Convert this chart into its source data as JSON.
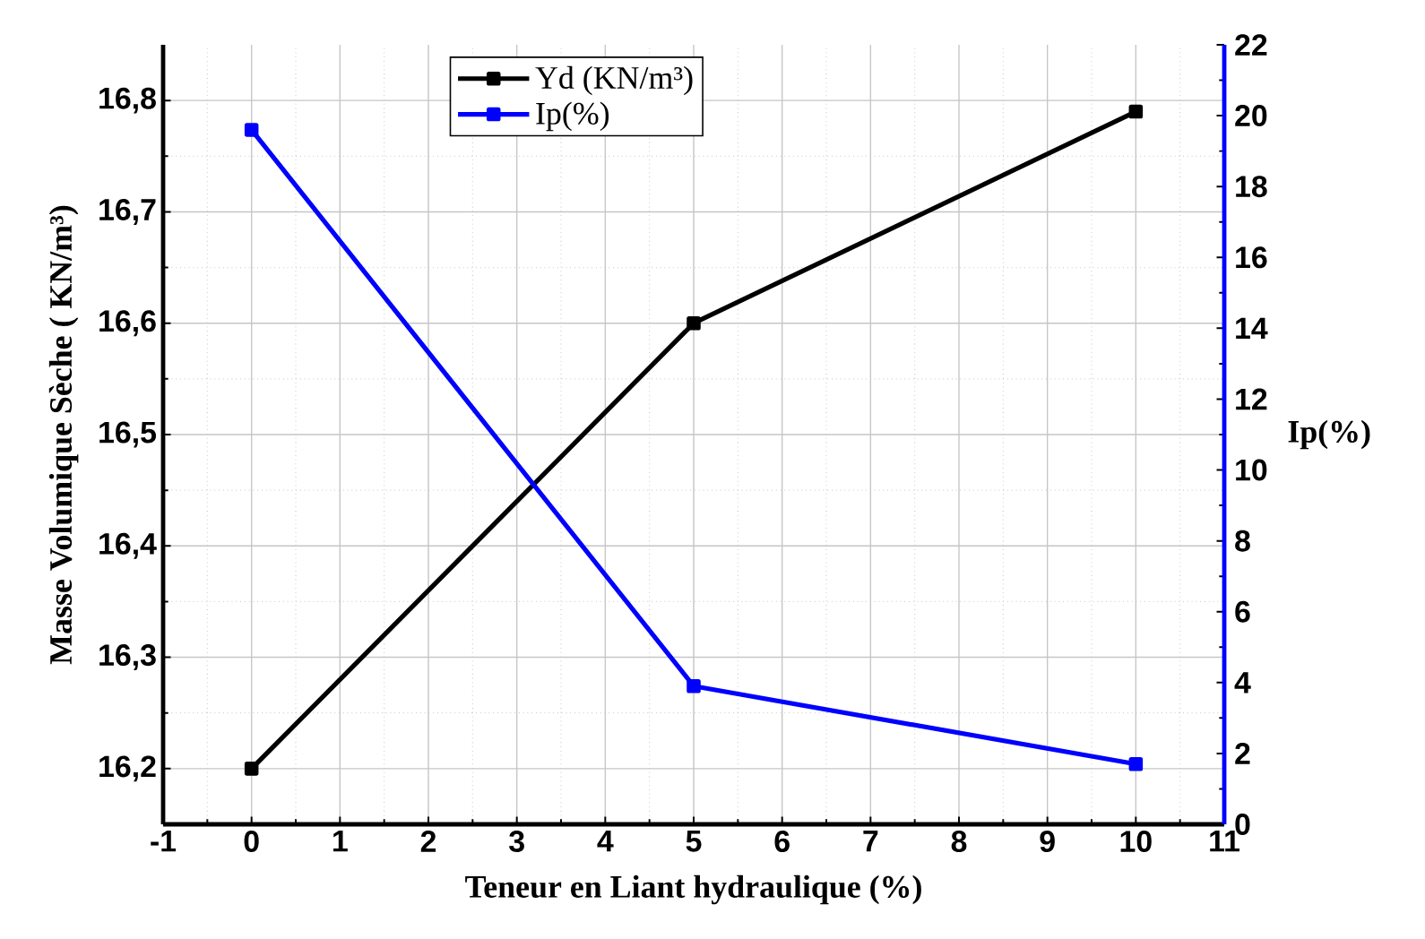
{
  "chart_data": {
    "type": "line",
    "xlabel": "Teneur en Liant hydraulique (%)",
    "ylabel": "Masse  Volumique Sèche ( KN/m³)",
    "y2label": "Ip(%)",
    "x": [
      0,
      5,
      10
    ],
    "series": [
      {
        "name": "Yd (KN/m³)",
        "color": "#000000",
        "values": [
          16.2,
          16.6,
          16.79
        ]
      },
      {
        "name": "Ip(%)",
        "color": "#0000ff",
        "values": [
          19.6,
          3.9,
          1.7
        ],
        "axis": "y2"
      }
    ],
    "xlim": [
      -1,
      11
    ],
    "xticks": [
      -1,
      0,
      1,
      2,
      3,
      4,
      5,
      6,
      7,
      8,
      9,
      10,
      11
    ],
    "ylim": [
      16.15,
      16.85
    ],
    "yticks": [
      {
        "value": 16.2,
        "label": "16,2"
      },
      {
        "value": 16.3,
        "label": "16,3"
      },
      {
        "value": 16.4,
        "label": "16,4"
      },
      {
        "value": 16.5,
        "label": "16,5"
      },
      {
        "value": 16.6,
        "label": "16,6"
      },
      {
        "value": 16.7,
        "label": "16,7"
      },
      {
        "value": 16.8,
        "label": "16,8"
      }
    ],
    "y2lim": [
      0,
      22
    ],
    "y2ticks": [
      0,
      2,
      4,
      6,
      8,
      10,
      12,
      14,
      16,
      18,
      20,
      22
    ],
    "grid": true,
    "legend": "top",
    "marker": "square",
    "line_style": "solid"
  }
}
